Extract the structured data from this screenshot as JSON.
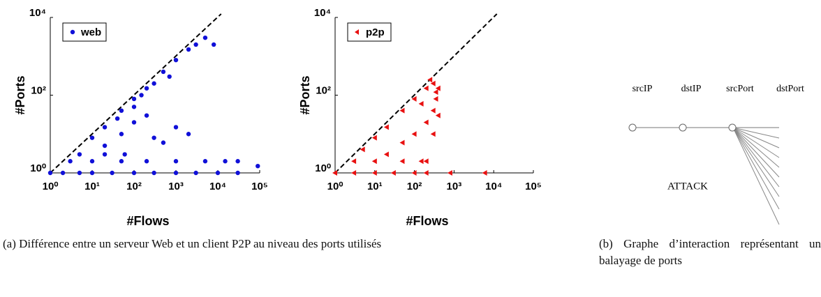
{
  "chart_data": [
    {
      "type": "scatter",
      "xlabel": "#Flows",
      "ylabel": "#Ports",
      "log_x": true,
      "log_y": true,
      "xlim": [
        1,
        100000
      ],
      "ylim": [
        1,
        10000
      ],
      "xticks": [
        {
          "value": 1,
          "label": "10⁰"
        },
        {
          "value": 10,
          "label": "10¹"
        },
        {
          "value": 100,
          "label": "10²"
        },
        {
          "value": 1000,
          "label": "10³"
        },
        {
          "value": 10000,
          "label": "10⁴"
        },
        {
          "value": 100000,
          "label": "10⁵"
        }
      ],
      "yticks": [
        {
          "value": 1,
          "label": "10⁰"
        },
        {
          "value": 100,
          "label": "10²"
        },
        {
          "value": 10000,
          "label": "10⁴"
        }
      ],
      "legend": "upper left",
      "marker": "circle",
      "series": [
        {
          "name": "web",
          "color": "#1010d8",
          "x": [
            1,
            2,
            5,
            10,
            30,
            100,
            300,
            1000,
            3000,
            10000,
            30000,
            90000,
            3,
            10,
            50,
            200,
            1000,
            5000,
            15000,
            30000,
            5,
            20,
            60,
            10,
            20,
            50,
            100,
            200,
            500,
            1000,
            2000,
            3000,
            5000,
            8000,
            20,
            50,
            100,
            200,
            300,
            500,
            1000,
            2000,
            100,
            300,
            40,
            150,
            700
          ],
          "values": [
            1,
            1,
            1,
            1,
            1,
            1,
            1,
            1,
            1,
            1,
            1,
            1.5,
            2,
            2,
            2,
            2,
            2,
            2,
            2,
            2,
            3,
            3,
            3,
            8,
            15,
            40,
            80,
            150,
            400,
            800,
            1500,
            2000,
            3000,
            2000,
            5,
            10,
            20,
            30,
            8,
            6,
            15,
            10,
            50,
            200,
            25,
            100,
            300
          ]
        }
      ]
    },
    {
      "type": "scatter",
      "xlabel": "#Flows",
      "ylabel": "#Ports",
      "log_x": true,
      "log_y": true,
      "xlim": [
        1,
        100000
      ],
      "ylim": [
        1,
        10000
      ],
      "xticks": [
        {
          "value": 1,
          "label": "10⁰"
        },
        {
          "value": 10,
          "label": "10¹"
        },
        {
          "value": 100,
          "label": "10²"
        },
        {
          "value": 1000,
          "label": "10³"
        },
        {
          "value": 10000,
          "label": "10⁴"
        },
        {
          "value": 100000,
          "label": "10⁵"
        }
      ],
      "yticks": [
        {
          "value": 1,
          "label": "10⁰"
        },
        {
          "value": 100,
          "label": "10²"
        },
        {
          "value": 10000,
          "label": "10⁴"
        }
      ],
      "legend": "upper left",
      "marker": "triangle",
      "series": [
        {
          "name": "p2p",
          "color": "#e81010",
          "x": [
            1,
            3,
            10,
            30,
            100,
            200,
            800,
            6000,
            3,
            10,
            50,
            150,
            200,
            5,
            10,
            20,
            50,
            100,
            200,
            250,
            300,
            400,
            350,
            300,
            200,
            100,
            50,
            20,
            150,
            300,
            400,
            350
          ],
          "values": [
            1,
            1,
            1,
            1,
            1,
            1,
            1,
            1,
            2,
            2,
            2,
            2,
            2,
            4,
            8,
            15,
            40,
            80,
            150,
            250,
            200,
            150,
            80,
            40,
            20,
            10,
            6,
            3,
            60,
            10,
            30,
            120
          ]
        }
      ]
    }
  ],
  "diagram": {
    "nodes": [
      "srcIP",
      "dstIP",
      "srcPort",
      "dstPort"
    ],
    "label": "ATTACK"
  },
  "captions": [
    "(a) Différence entre un serveur Web et un client P2P au niveau des ports utilisés",
    "(b) Graphe d’interaction représentant un balayage de ports"
  ]
}
